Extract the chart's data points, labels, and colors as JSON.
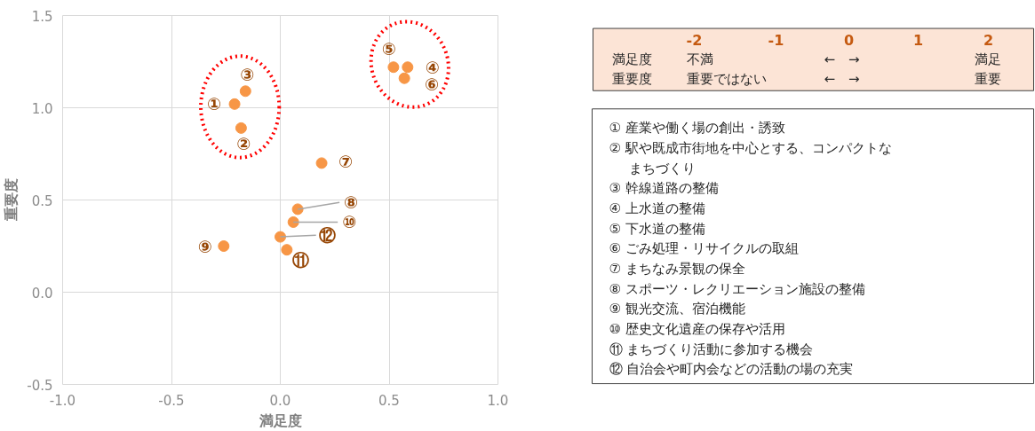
{
  "chart_data": {
    "type": "scatter",
    "xlabel": "満足度",
    "ylabel": "重要度",
    "x": [
      -0.21,
      -0.18,
      -0.16,
      0.585,
      0.52,
      0.57,
      0.19,
      0.08,
      -0.26,
      0.06,
      0.03,
      0.0
    ],
    "values": [
      1.02,
      0.89,
      1.09,
      1.22,
      1.22,
      1.16,
      0.7,
      0.45,
      0.25,
      0.38,
      0.23,
      0.3
    ],
    "color": "#f79646",
    "marker": "circle",
    "grid": true,
    "xlim": [
      -1,
      1
    ],
    "ylim": [
      -0.5,
      1.5
    ],
    "xticks": [
      {
        "value": -1,
        "label": "-1.0"
      },
      {
        "value": -0.5,
        "label": "-0.5"
      },
      {
        "value": 0,
        "label": "0.0"
      },
      {
        "value": 0.5,
        "label": "0.5"
      },
      {
        "value": 1,
        "label": "1.0"
      }
    ],
    "yticks": [
      {
        "value": -0.5,
        "label": "-0.5"
      },
      {
        "value": 0,
        "label": "0.0"
      },
      {
        "value": 0.5,
        "label": "0.5"
      },
      {
        "value": 1,
        "label": "1.0"
      },
      {
        "value": 1.5,
        "label": "1.5"
      }
    ],
    "annotations": [
      {
        "text": "①",
        "x": -0.21,
        "y": 1.02
      },
      {
        "text": "②",
        "x": -0.18,
        "y": 0.89
      },
      {
        "text": "③",
        "x": -0.16,
        "y": 1.09
      },
      {
        "text": "④",
        "x": 0.585,
        "y": 1.22
      },
      {
        "text": "⑤",
        "x": 0.52,
        "y": 1.22
      },
      {
        "text": "⑥",
        "x": 0.57,
        "y": 1.16
      },
      {
        "text": "⑦",
        "x": 0.19,
        "y": 0.7
      },
      {
        "text": "⑧",
        "x": 0.08,
        "y": 0.45
      },
      {
        "text": "⑨",
        "x": -0.26,
        "y": 0.25
      },
      {
        "text": "⑩",
        "x": 0.06,
        "y": 0.38
      },
      {
        "text": "⑪",
        "x": 0.03,
        "y": 0.23
      },
      {
        "text": "⑫",
        "x": 0.0,
        "y": 0.3
      },
      "-2",
      "-1",
      "0",
      "1",
      "2",
      "満足度",
      "不満",
      "←　→",
      "満足",
      "重要度",
      "重要ではない",
      "←　→",
      "重要",
      "① 産業や働く場の創出・誘致",
      "② 駅や既成市街地を中心とする、コンパクトな",
      "まちづくり",
      "③ 幹線道路の整備",
      "④ 上水道の整備",
      "⑤ 下水道の整備",
      "⑥ ごみ処理・リサイクルの取組",
      "⑦ まちなみ景観の保全",
      "⑧ スポーツ・レクリエーション施設の整備",
      "⑨ 観光交流、宿泊機能",
      "⑩ 歴史文化遺産の保存や活用",
      "⑪ まちづくり活動に参加する機会",
      "⑫ 自治会や町内会などの活動の場の充実"
    ]
  }
}
